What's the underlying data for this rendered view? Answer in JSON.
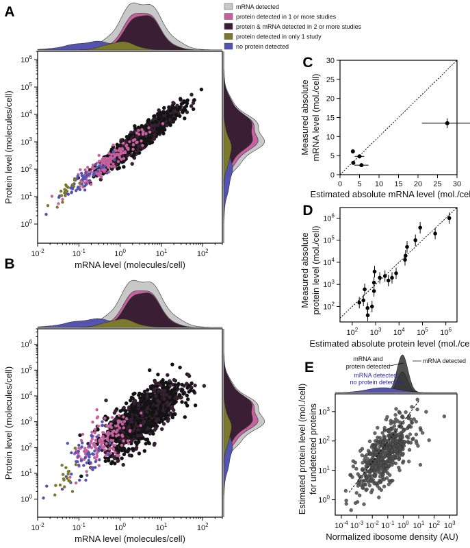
{
  "colors": {
    "mrna_detected": "#c8c8c8",
    "protein_1plus": "#c5619e",
    "protein_mrna_2plus": "#3a1e34",
    "protein_only1": "#7b7a2a",
    "no_protein": "#5454b0",
    "dark_point": "#111111",
    "e_points": "#4d4d4d"
  },
  "legend": {
    "items": [
      {
        "label": "mRNA detected",
        "color": "#c8c8c8"
      },
      {
        "label": "protein detected in 1 or more studies",
        "color": "#c5619e"
      },
      {
        "label": "protein & mRNA detected in 2 or more studies",
        "color": "#3a1e34"
      },
      {
        "label": "protein detected in only 1 study",
        "color": "#7b7a2a"
      },
      {
        "label": "no protein detected",
        "color": "#5454b0"
      }
    ]
  },
  "panels": {
    "A": {
      "letter": "A",
      "xlabel": "mRNA level (molecules/cell)",
      "ylabel": "Protein level (molecules/cell)"
    },
    "B": {
      "letter": "B",
      "xlabel": "mRNA level (molecules/cell)",
      "ylabel": "Protein level (molecules/cell)"
    },
    "C": {
      "letter": "C",
      "xlabel": "Estimated absolute mRNA level (mol./cell)",
      "ylabel_line1": "Measured absolute",
      "ylabel_line2": "mRNA level (mol./cell)"
    },
    "D": {
      "letter": "D",
      "xlabel": "Estimated absolute protein level (mol./cell)",
      "ylabel_line1": "Measured absolute",
      "ylabel_line2": "protein level (mol./cell)"
    },
    "E": {
      "letter": "E",
      "xlabel": "Normalized ibosome density (AU)",
      "ylabel_line1": "Estimated protein level (mol./cell)",
      "ylabel_line2": "for undetected proteins",
      "annotations": {
        "mrna_protein_1": "mRNA and",
        "mrna_protein_2": "protein detected",
        "mrna_detected": "mRNA detected",
        "no_protein_1": "mRNA detected,",
        "no_protein_2": "no protein detected"
      }
    }
  },
  "chart_data": [
    {
      "panel": "A",
      "type": "scatter",
      "xlabel": "mRNA level (molecules/cell)",
      "ylabel": "Protein level (molecules/cell)",
      "xscale": "log",
      "yscale": "log",
      "xlim": [
        0.01,
        300
      ],
      "ylim": [
        0.2,
        2000000
      ],
      "xticks": [
        "10^-2",
        "10^-1",
        "10^0",
        "10^1",
        "10^2"
      ],
      "yticks": [
        "10^0",
        "10^1",
        "10^2",
        "10^3",
        "10^4",
        "10^5",
        "10^6"
      ],
      "relation": {
        "slope": 1.1,
        "intercept_log10": 2.6,
        "scatter_sd_log10": 0.18
      },
      "series": [
        {
          "name": "protein & mRNA detected in 2 or more studies",
          "center_log10_x": 0.55,
          "spread_log10_x": 0.45
        },
        {
          "name": "protein detected in 1 or more studies",
          "center_log10_x": -0.3,
          "spread_log10_x": 0.45
        },
        {
          "name": "no protein detected",
          "center_log10_x": -0.9,
          "spread_log10_x": 0.35
        },
        {
          "name": "protein detected in only 1 study",
          "center_log10_x": -1.4,
          "spread_log10_x": 0.15
        }
      ],
      "marginals": "density",
      "grid": false
    },
    {
      "panel": "B",
      "type": "scatter",
      "xlabel": "mRNA level (molecules/cell)",
      "ylabel": "Protein level (molecules/cell)",
      "xscale": "log",
      "yscale": "log",
      "xlim": [
        0.01,
        300
      ],
      "ylim": [
        0.2,
        4000000
      ],
      "xticks": [
        "10^-2",
        "10^-1",
        "10^0",
        "10^1",
        "10^2"
      ],
      "yticks": [
        "10^0",
        "10^1",
        "10^2",
        "10^3",
        "10^4",
        "10^5",
        "10^6"
      ],
      "relation": {
        "slope": 1.1,
        "intercept_log10": 2.6,
        "scatter_sd_log10": 0.45
      },
      "series": [
        {
          "name": "protein & mRNA detected in 2 or more studies",
          "center_log10_x": 0.55,
          "spread_log10_x": 0.45
        },
        {
          "name": "protein detected in 1 or more studies",
          "center_log10_x": -0.4,
          "spread_log10_x": 0.4
        },
        {
          "name": "no protein detected",
          "center_log10_x": -0.9,
          "spread_log10_x": 0.35
        },
        {
          "name": "protein detected in only 1 study",
          "center_log10_x": -1.3,
          "spread_log10_x": 0.2
        }
      ],
      "marginals": "density",
      "grid": false
    },
    {
      "panel": "C",
      "type": "scatter",
      "xlabel": "Estimated absolute mRNA level (mol./cell)",
      "ylabel": "Measured absolute mRNA level (mol./cell)",
      "xlim": [
        0,
        30
      ],
      "ylim": [
        0,
        30
      ],
      "xticks": [
        0,
        5,
        10,
        15,
        20,
        25,
        30
      ],
      "yticks": [
        0,
        5,
        10,
        15,
        20,
        25,
        30
      ],
      "points": [
        {
          "x": 3.3,
          "y": 6.1,
          "xerr": 0.4,
          "yerr": 0.4
        },
        {
          "x": 5.0,
          "y": 4.8,
          "xerr": 1.2,
          "yerr": 0.5
        },
        {
          "x": 3.4,
          "y": 3.1,
          "xerr": 0.4,
          "yerr": 0.4
        },
        {
          "x": 5.5,
          "y": 2.5,
          "xerr": 1.8,
          "yerr": 0.4
        },
        {
          "x": 27.5,
          "y": 13.5,
          "xerr": 6.5,
          "yerr": 1.3
        }
      ],
      "reference_line": "y = x (dotted)"
    },
    {
      "panel": "D",
      "type": "scatter",
      "xlabel": "Estimated absolute protein level (mol./cell)",
      "ylabel": "Measured absolute protein level (mol./cell)",
      "xscale": "log",
      "yscale": "log",
      "xlim": [
        30,
        3000000
      ],
      "ylim": [
        20,
        3000000
      ],
      "xticks": [
        "10^2",
        "10^3",
        "10^4",
        "10^5",
        "10^6"
      ],
      "yticks": [
        "10^2",
        "10^3",
        "10^4",
        "10^5",
        "10^6"
      ],
      "points": [
        {
          "x": 200,
          "y": 150
        },
        {
          "x": 300,
          "y": 190
        },
        {
          "x": 340,
          "y": 600
        },
        {
          "x": 450,
          "y": 85
        },
        {
          "x": 460,
          "y": 40
        },
        {
          "x": 700,
          "y": 100
        },
        {
          "x": 850,
          "y": 500
        },
        {
          "x": 850,
          "y": 1200
        },
        {
          "x": 900,
          "y": 3800
        },
        {
          "x": 1500,
          "y": 2000
        },
        {
          "x": 2500,
          "y": 2400
        },
        {
          "x": 3500,
          "y": 1500
        },
        {
          "x": 5000,
          "y": 2000
        },
        {
          "x": 7500,
          "y": 3200
        },
        {
          "x": 18000,
          "y": 13000
        },
        {
          "x": 19000,
          "y": 20000
        },
        {
          "x": 22000,
          "y": 50000
        },
        {
          "x": 50000,
          "y": 100000
        },
        {
          "x": 80000,
          "y": 370000
        },
        {
          "x": 350000,
          "y": 200000
        },
        {
          "x": 1400000,
          "y": 1000000
        }
      ],
      "reference_line": "y = x (dotted)"
    },
    {
      "panel": "E",
      "type": "scatter",
      "xlabel": "Normalized ibosome density (AU)",
      "ylabel": "Estimated protein level (mol./cell) for undetected proteins",
      "xscale": "log",
      "yscale": "log",
      "xlim": [
        4e-05,
        3000
      ],
      "ylim": [
        0.3,
        4000
      ],
      "xticks": [
        "10^-4",
        "10^-3",
        "10^-2",
        "10^-1",
        "10^0",
        "10^1",
        "10^2",
        "10^3"
      ],
      "yticks": [
        "10^0",
        "10^1",
        "10^2",
        "10^3"
      ],
      "cloud": {
        "center_log10_x": -1.2,
        "spread_log10_x": 0.9,
        "slope": 0.45,
        "intercept_log10": 2.05,
        "scatter_sd_log10": 0.45
      },
      "marginals": "density",
      "reference_line": "dotted fit"
    }
  ]
}
